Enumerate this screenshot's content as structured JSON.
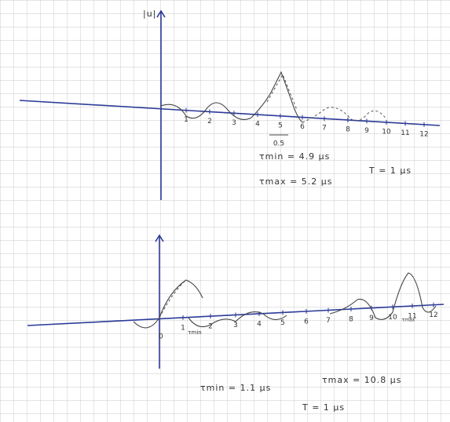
{
  "top_plot": {
    "y_label": "|u|",
    "x_ticks": [
      "1",
      "2",
      "3",
      "4",
      "5",
      "6",
      "7",
      "8",
      "9",
      "10",
      "11",
      "12"
    ],
    "scale_note": "0.5",
    "annotations": [
      "τmin = 4.9 μs",
      "τmax = 5.2 μs",
      "T = 1 μs"
    ]
  },
  "bottom_plot": {
    "origin": "0",
    "x_ticks": [
      "1",
      "2",
      "3",
      "4",
      "5",
      "6",
      "7",
      "8",
      "9",
      "10",
      "11",
      "12"
    ],
    "markers": [
      "τmin",
      "τmax"
    ],
    "annotations": [
      "τmin = 1.1 μs",
      "τmax = 10.8 μs",
      "T = 1 μs"
    ]
  }
}
